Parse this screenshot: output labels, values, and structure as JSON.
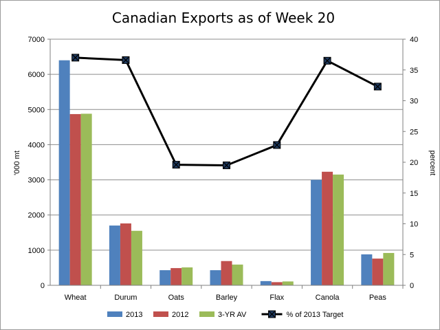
{
  "chart_data": {
    "type": "bar",
    "title": "Canadian Exports as of Week 20",
    "xlabel": "",
    "ylabel": "'000 mt",
    "y2label": "percent",
    "ylim": [
      0,
      7000
    ],
    "y2lim": [
      0,
      40
    ],
    "yticks": [
      "0",
      "1000",
      "2000",
      "3000",
      "4000",
      "5000",
      "6000",
      "7000"
    ],
    "y2ticks": [
      "0",
      "5",
      "10",
      "15",
      "20",
      "25",
      "30",
      "35",
      "40"
    ],
    "grid": true,
    "legend_position": "bottom",
    "categories": [
      "Wheat",
      "Durum",
      "Oats",
      "Barley",
      "Flax",
      "Canola",
      "Peas"
    ],
    "series": [
      {
        "name": "2013",
        "type": "bar",
        "axis": "left",
        "color": "#4f81bd",
        "values": [
          6400,
          1700,
          430,
          430,
          120,
          3000,
          880
        ]
      },
      {
        "name": "2012",
        "type": "bar",
        "axis": "left",
        "color": "#c0504d",
        "values": [
          4870,
          1760,
          490,
          690,
          90,
          3230,
          760
        ]
      },
      {
        "name": "3-YR AV",
        "type": "bar",
        "axis": "left",
        "color": "#9bbb59",
        "values": [
          4880,
          1550,
          510,
          590,
          110,
          3150,
          920
        ]
      },
      {
        "name": "% of 2013 Target",
        "type": "line",
        "axis": "right",
        "color": "#000000",
        "marker": "x-square",
        "values": [
          37.0,
          36.6,
          19.6,
          19.5,
          22.8,
          36.5,
          32.3
        ]
      }
    ]
  }
}
